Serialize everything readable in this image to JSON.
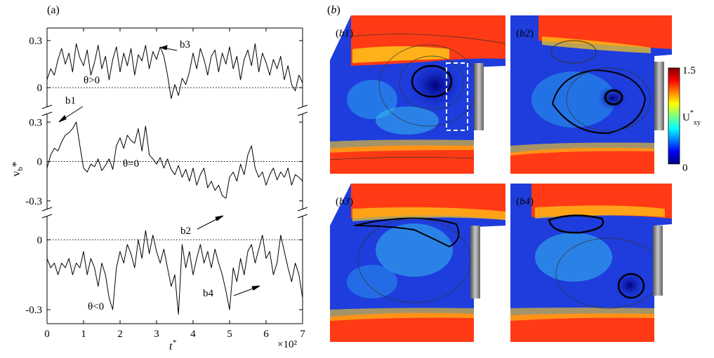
{
  "panel_a": {
    "label": "(a)",
    "xlabel_main": "t",
    "xlabel_sup": "*",
    "x_multiplier": "×10²",
    "ylabel_main": "v",
    "ylabel_sub": "b",
    "ylabel_sup": "*",
    "x_ticks": [
      "0",
      "1",
      "2",
      "3",
      "4",
      "5",
      "6",
      "7"
    ],
    "top_ticks": [
      "0.3",
      "0"
    ],
    "mid_ticks": [
      "0.3",
      "0",
      "-0.3"
    ],
    "bot_ticks": [
      "0",
      "-0.3"
    ],
    "annotations": {
      "b1": "b1",
      "b2": "b2",
      "b3": "b3",
      "b4": "b4",
      "theta_pos": "θ>0",
      "theta_zero": "θ=0",
      "theta_neg": "θ<0"
    }
  },
  "panel_b": {
    "label": "(b)",
    "sub_labels": [
      "(b1)",
      "(b2)",
      "(b3)",
      "(b4)"
    ],
    "colorbar": {
      "max_label": "1.5",
      "min_label": "0",
      "title_main": "U",
      "title_sup": "*",
      "title_sub": "xy"
    }
  },
  "chart_data": [
    {
      "type": "line",
      "panel": "a-top",
      "x": [
        0,
        0.1,
        0.2,
        0.3,
        0.4,
        0.5,
        0.6,
        0.7,
        0.8,
        0.9,
        1.0,
        1.1,
        1.2,
        1.3,
        1.4,
        1.5,
        1.6,
        1.7,
        1.8,
        1.9,
        2.0,
        2.1,
        2.2,
        2.3,
        2.4,
        2.5,
        2.6,
        2.7,
        2.8,
        2.9,
        3.0,
        3.1,
        3.2,
        3.3,
        3.4,
        3.5,
        3.6,
        3.7,
        3.8,
        3.9,
        4.0,
        4.1,
        4.2,
        4.3,
        4.4,
        4.5,
        4.6,
        4.7,
        4.8,
        4.9,
        5.0,
        5.1,
        5.2,
        5.3,
        5.4,
        5.5,
        5.6,
        5.7,
        5.8,
        5.9,
        6.0,
        6.1,
        6.2,
        6.3,
        6.4,
        6.5,
        6.6,
        6.7,
        6.8,
        6.9,
        7.0
      ],
      "values": [
        0.05,
        0.12,
        0.08,
        0.18,
        0.25,
        0.15,
        0.22,
        0.1,
        0.28,
        0.19,
        0.14,
        0.24,
        0.08,
        0.16,
        0.27,
        0.12,
        0.2,
        0.05,
        0.18,
        0.26,
        0.1,
        0.22,
        0.14,
        0.25,
        0.08,
        0.21,
        0.17,
        0.27,
        0.12,
        0.23,
        0.18,
        0.26,
        0.2,
        0.08,
        -0.07,
        0.02,
        -0.05,
        0.06,
        0.02,
        0.1,
        0.22,
        0.12,
        0.25,
        0.18,
        0.08,
        0.2,
        0.24,
        0.1,
        0.22,
        0.15,
        0.26,
        0.12,
        0.2,
        0.05,
        0.18,
        0.24,
        0.14,
        0.28,
        0.1,
        0.22,
        0.16,
        0.08,
        0.18,
        0.12,
        0.2,
        0.05,
        0.14,
        0.02,
        -0.02,
        0.08,
        0.03
      ],
      "ylim": [
        -0.12,
        0.38
      ],
      "reference_line": 0
    },
    {
      "type": "line",
      "panel": "a-middle",
      "x": [
        0,
        0.1,
        0.2,
        0.3,
        0.4,
        0.5,
        0.6,
        0.7,
        0.8,
        0.9,
        1.0,
        1.1,
        1.2,
        1.3,
        1.4,
        1.5,
        1.6,
        1.7,
        1.8,
        1.9,
        2.0,
        2.1,
        2.2,
        2.3,
        2.4,
        2.5,
        2.6,
        2.7,
        2.8,
        2.9,
        3.0,
        3.1,
        3.2,
        3.3,
        3.4,
        3.5,
        3.6,
        3.7,
        3.8,
        3.9,
        4.0,
        4.1,
        4.2,
        4.3,
        4.4,
        4.5,
        4.6,
        4.7,
        4.8,
        4.9,
        5.0,
        5.1,
        5.2,
        5.3,
        5.4,
        5.5,
        5.6,
        5.7,
        5.8,
        5.9,
        6.0,
        6.1,
        6.2,
        6.3,
        6.4,
        6.5,
        6.6,
        6.7,
        6.8,
        6.9,
        7.0
      ],
      "values": [
        -0.05,
        0.05,
        0.1,
        0.08,
        0.15,
        0.2,
        0.22,
        0.25,
        0.3,
        0.12,
        -0.05,
        -0.08,
        -0.02,
        -0.04,
        0.02,
        -0.07,
        -0.03,
        0.02,
        -0.06,
        0.12,
        0.18,
        0.1,
        0.2,
        0.16,
        0.14,
        0.25,
        0.08,
        0.27,
        0.05,
        0.02,
        -0.02,
        0.03,
        -0.05,
        0.02,
        -0.06,
        -0.1,
        -0.03,
        -0.12,
        -0.06,
        -0.15,
        -0.05,
        -0.18,
        -0.1,
        -0.05,
        -0.2,
        -0.15,
        -0.22,
        -0.18,
        -0.26,
        -0.28,
        -0.12,
        -0.08,
        -0.15,
        -0.02,
        -0.1,
        0.05,
        0.12,
        -0.05,
        -0.12,
        -0.08,
        -0.18,
        -0.1,
        -0.05,
        -0.14,
        -0.08,
        -0.12,
        -0.05,
        -0.18,
        -0.1,
        -0.12,
        -0.15
      ],
      "ylim": [
        -0.36,
        0.36
      ],
      "reference_line": 0
    },
    {
      "type": "line",
      "panel": "a-bottom",
      "x": [
        0,
        0.1,
        0.2,
        0.3,
        0.4,
        0.5,
        0.6,
        0.7,
        0.8,
        0.9,
        1.0,
        1.1,
        1.2,
        1.3,
        1.4,
        1.5,
        1.6,
        1.7,
        1.8,
        1.9,
        2.0,
        2.1,
        2.2,
        2.3,
        2.4,
        2.5,
        2.6,
        2.7,
        2.8,
        2.9,
        3.0,
        3.1,
        3.2,
        3.3,
        3.4,
        3.5,
        3.6,
        3.7,
        3.8,
        3.9,
        4.0,
        4.1,
        4.2,
        4.3,
        4.4,
        4.5,
        4.6,
        4.7,
        4.8,
        4.9,
        5.0,
        5.1,
        5.2,
        5.3,
        5.4,
        5.5,
        5.6,
        5.7,
        5.8,
        5.9,
        6.0,
        6.1,
        6.2,
        6.3,
        6.4,
        6.5,
        6.6,
        6.7,
        6.8,
        6.9,
        7.0
      ],
      "values": [
        -0.08,
        -0.12,
        -0.1,
        -0.15,
        -0.1,
        -0.12,
        -0.08,
        -0.15,
        -0.1,
        -0.12,
        -0.05,
        -0.15,
        -0.08,
        -0.12,
        -0.2,
        -0.1,
        -0.15,
        -0.25,
        -0.3,
        -0.12,
        -0.05,
        -0.1,
        -0.02,
        -0.06,
        -0.12,
        0.0,
        -0.08,
        0.04,
        -0.06,
        0.02,
        -0.05,
        -0.1,
        -0.04,
        -0.12,
        -0.2,
        -0.15,
        -0.32,
        -0.02,
        -0.12,
        -0.05,
        -0.15,
        -0.08,
        -0.02,
        -0.1,
        -0.05,
        -0.12,
        -0.04,
        -0.1,
        -0.15,
        -0.22,
        -0.3,
        -0.12,
        -0.18,
        -0.08,
        -0.15,
        -0.05,
        -0.02,
        -0.1,
        -0.04,
        0.02,
        -0.08,
        -0.05,
        -0.15,
        -0.1,
        0.02,
        -0.05,
        -0.12,
        -0.18,
        -0.1,
        -0.15,
        -0.25
      ],
      "ylim": [
        -0.36,
        0.1
      ],
      "reference_line": 0
    },
    {
      "type": "heatmap",
      "panel": "b",
      "subplots": [
        "(b1)",
        "(b2)",
        "(b3)",
        "(b4)"
      ],
      "colorbar_range": [
        0,
        1.5
      ],
      "colormap": "jet"
    }
  ]
}
